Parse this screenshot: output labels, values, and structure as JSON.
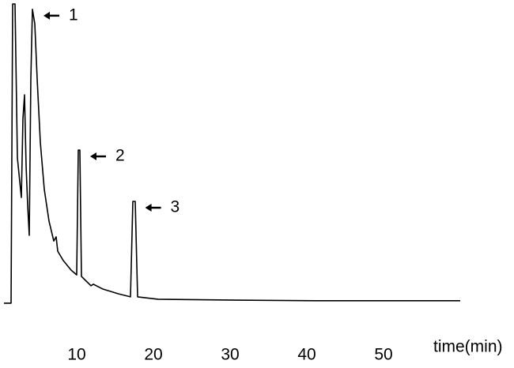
{
  "chart_data": {
    "type": "line",
    "x_label": "time(min)",
    "x": [
      0.52,
      1.44,
      1.65,
      1.96,
      2.27,
      2.78,
      2.99,
      3.2,
      3.4,
      3.61,
      3.81,
      4.02,
      4.23,
      4.54,
      4.85,
      5.26,
      5.77,
      6.39,
      7.01,
      7.32,
      7.53,
      8.25,
      9.28,
      10.0,
      10.21,
      10.41,
      10.62,
      11.86,
      12.16,
      13.4,
      15.46,
      17.01,
      17.32,
      17.63,
      17.94,
      20.62,
      30.93,
      41.24,
      60.0
    ],
    "values": [
      0.3,
      0.3,
      100,
      100,
      48.7,
      35.5,
      61.8,
      69.7,
      46,
      32.9,
      22.9,
      75,
      98.2,
      93.4,
      75,
      53.9,
      38.2,
      27.6,
      21,
      22.4,
      17.6,
      14.5,
      11.3,
      9.7,
      51.3,
      51.3,
      9.2,
      6.1,
      6.6,
      5,
      3.4,
      2.4,
      34.2,
      34.2,
      2.4,
      1.6,
      1.3,
      1.1,
      1.1
    ],
    "color": "#000000",
    "xlim": [
      0,
      60
    ],
    "xticks": [
      10,
      20,
      30,
      40,
      50
    ],
    "ylim": [
      0,
      100
    ],
    "annotations": [
      {
        "text": "1",
        "x": 4.23,
        "y": 98.2
      },
      {
        "text": "2",
        "x": 10.31,
        "y": 51.3
      },
      {
        "text": "3",
        "x": 17.48,
        "y": 34.2
      }
    ]
  }
}
